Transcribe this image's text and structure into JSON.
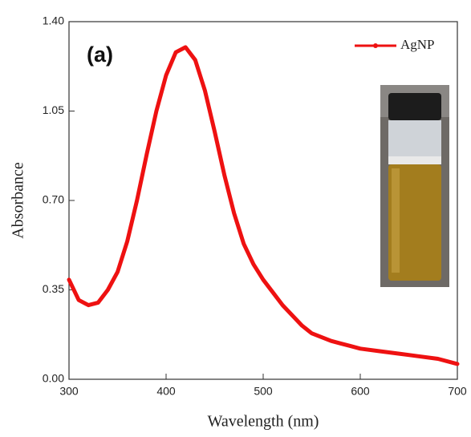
{
  "chart_data": {
    "type": "line",
    "annotation": "(a)",
    "x_label": "Wavelength (nm)",
    "y_label": "Absorbance",
    "x": [
      300,
      310,
      320,
      330,
      340,
      350,
      360,
      370,
      380,
      390,
      400,
      410,
      420,
      430,
      440,
      450,
      460,
      470,
      480,
      490,
      500,
      510,
      520,
      530,
      540,
      550,
      560,
      570,
      580,
      590,
      600,
      620,
      640,
      660,
      680,
      700
    ],
    "series": [
      {
        "name": "AgNP",
        "color": "#ee1111",
        "values": [
          0.39,
          0.31,
          0.29,
          0.3,
          0.35,
          0.42,
          0.54,
          0.7,
          0.88,
          1.05,
          1.19,
          1.28,
          1.3,
          1.25,
          1.13,
          0.97,
          0.8,
          0.65,
          0.53,
          0.45,
          0.39,
          0.34,
          0.29,
          0.25,
          0.21,
          0.18,
          0.165,
          0.15,
          0.14,
          0.13,
          0.12,
          0.11,
          0.1,
          0.09,
          0.08,
          0.06
        ]
      }
    ],
    "xlim": [
      300,
      700
    ],
    "xticks": [
      300,
      400,
      500,
      600,
      700
    ],
    "ylim": [
      0,
      1.4
    ],
    "yticks": [
      {
        "value": 0,
        "label": "0.00"
      },
      0.35,
      {
        "value": 0.7,
        "label": "0.70"
      },
      1.05,
      {
        "value": 1.4,
        "label": "1.40"
      }
    ],
    "grid": false,
    "legend": "upper right"
  }
}
